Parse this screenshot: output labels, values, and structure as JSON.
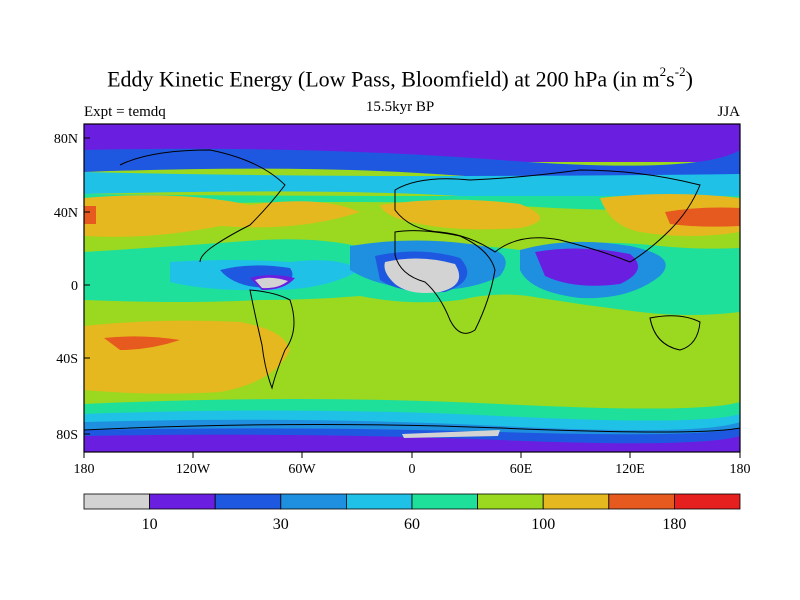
{
  "map": {
    "title": "Eddy Kinetic Energy (Low Pass, Bloomfield) at 200 hPa (in m",
    "title_sup1": "2",
    "title_mid": "s",
    "title_sup2": "-2",
    "title_end": ")",
    "subtitle": "15.5kyr BP",
    "left_label": "Expt = temdq",
    "right_label": "JJA",
    "lat_labels": [
      "80N",
      "40N",
      "0",
      "40S",
      "80S"
    ],
    "lon_labels": [
      "180",
      "120W",
      "60W",
      "0",
      "60E",
      "120E",
      "180"
    ]
  },
  "colorbar": {
    "colors": [
      "#d3d3d3",
      "#6a1fe0",
      "#1f58e0",
      "#1f8fe0",
      "#1fc2e6",
      "#1fe09a",
      "#9ad91f",
      "#e6b81f",
      "#e6591f",
      "#e61f1f"
    ],
    "labels": [
      "10",
      "30",
      "60",
      "100",
      "180"
    ]
  }
}
